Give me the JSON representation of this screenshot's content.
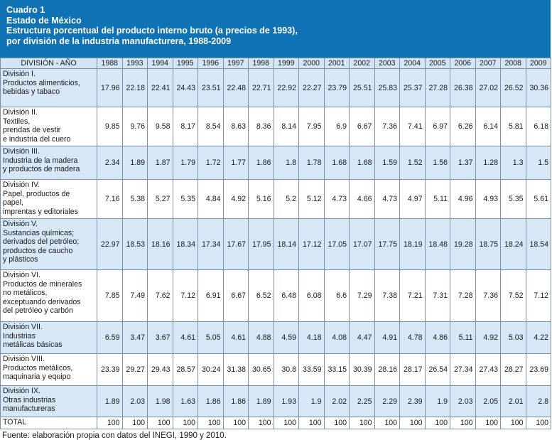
{
  "header": {
    "line1": "Cuadro 1",
    "line2": "Estado de México",
    "line3": "Estructura porcentual del producto interno bruto (a precios de 1993),",
    "line4": "por división de la industria manufacturera, 1988-2009"
  },
  "table": {
    "corner_label": "DIVISIÓN - AÑO",
    "years": [
      "1988",
      "1993",
      "1994",
      "1995",
      "1996",
      "1997",
      "1998",
      "1999",
      "2000",
      "2001",
      "2002",
      "2003",
      "2004",
      "2005",
      "2006",
      "2007",
      "2008",
      "2009"
    ],
    "rows": [
      {
        "label": [
          "División I.",
          "Productos alimenticios,",
          "bebidas y tabaco"
        ],
        "values": [
          "17.96",
          "22.18",
          "22.41",
          "24.43",
          "23.51",
          "22.48",
          "22.71",
          "22.92",
          "22.27",
          "23.79",
          "25.51",
          "25.83",
          "25.37",
          "27.28",
          "26.38",
          "27.02",
          "26.52",
          "30.36"
        ]
      },
      {
        "label": [
          "División II.",
          "Textiles,",
          "prendas de vestir",
          "e industria del cuero"
        ],
        "values": [
          "9.85",
          "9.76",
          "9.58",
          "8.17",
          "8.54",
          "8.63",
          "8.36",
          "8.14",
          "7.95",
          "6.9",
          "6.67",
          "7.36",
          "7.41",
          "6.97",
          "6.26",
          "6.14",
          "5.81",
          "6.18"
        ]
      },
      {
        "label": [
          "División III.",
          "Industria de la madera",
          "y productos de madera"
        ],
        "values": [
          "2.34",
          "1.89",
          "1.87",
          "1.79",
          "1.72",
          "1.77",
          "1.86",
          "1.8",
          "1.78",
          "1.68",
          "1.68",
          "1.59",
          "1.52",
          "1.56",
          "1.37",
          "1.28",
          "1.3",
          "1.5"
        ]
      },
      {
        "label": [
          "División IV.",
          "Papel, productos de",
          "papel,",
          "imprentas y editoriales"
        ],
        "values": [
          "7.16",
          "5.38",
          "5.27",
          "5.35",
          "4.84",
          "4.92",
          "5.16",
          "5.2",
          "5.12",
          "4.73",
          "4.66",
          "4.73",
          "4.97",
          "5.11",
          "4.96",
          "4.93",
          "5.35",
          "5.61"
        ]
      },
      {
        "label": [
          "División V.",
          "Sustancias químicas;",
          "derivados del petróleo;",
          "productos de caucho",
          "y plásticos"
        ],
        "values": [
          "22.97",
          "18.53",
          "18.16",
          "18.34",
          "17.34",
          "17.67",
          "17.95",
          "18.14",
          "17.12",
          "17.05",
          "17.07",
          "17.75",
          "18.19",
          "18.48",
          "19.28",
          "18.75",
          "18.24",
          "18.54"
        ]
      },
      {
        "label": [
          "División VI.",
          "Productos de minerales",
          "no metálicos,",
          "exceptuando derivados",
          "del petróleo y carbón"
        ],
        "values": [
          "7.85",
          "7.49",
          "7.62",
          "7.12",
          "6.91",
          "6.67",
          "6.52",
          "6.48",
          "6.08",
          "6.6",
          "7.29",
          "7.38",
          "7.21",
          "7.31",
          "7.28",
          "7.36",
          "7.52",
          "7.12"
        ]
      },
      {
        "label": [
          "División VII.",
          "Industrias",
          "metálicas básicas"
        ],
        "values": [
          "6.59",
          "3.47",
          "3.67",
          "4.61",
          "5.05",
          "4.61",
          "4.88",
          "4.59",
          "4.18",
          "4.08",
          "4.47",
          "4.91",
          "4.78",
          "4.86",
          "5.11",
          "4.92",
          "5.03",
          "4.22"
        ]
      },
      {
        "label": [
          "División VIII.",
          "Productos metálicos,",
          "maquinaria y equipo"
        ],
        "values": [
          "23.39",
          "29.27",
          "29.43",
          "28.57",
          "30.24",
          "31.38",
          "30.65",
          "30.8",
          "33.59",
          "33.15",
          "30.39",
          "28.16",
          "28.17",
          "26.54",
          "27.34",
          "27.43",
          "28.27",
          "23.69"
        ]
      },
      {
        "label": [
          "División IX.",
          "Otras industrias",
          "manufactureras"
        ],
        "values": [
          "1.89",
          "2.03",
          "1.98",
          "1.63",
          "1.86",
          "1.86",
          "1.89",
          "1.93",
          "1.9",
          "2.02",
          "2.25",
          "2.29",
          "2.39",
          "1.9",
          "2.03",
          "2.05",
          "2.01",
          "2.8"
        ]
      }
    ],
    "total": {
      "label": "TOTAL",
      "values": [
        "100",
        "100",
        "100",
        "100",
        "100",
        "100",
        "100",
        "100",
        "100",
        "100",
        "100",
        "100",
        "100",
        "100",
        "100",
        "100",
        "100",
        "100"
      ]
    }
  },
  "source": "Fuente: elaboración propia con datos del INEGI, 1990 y 2010."
}
